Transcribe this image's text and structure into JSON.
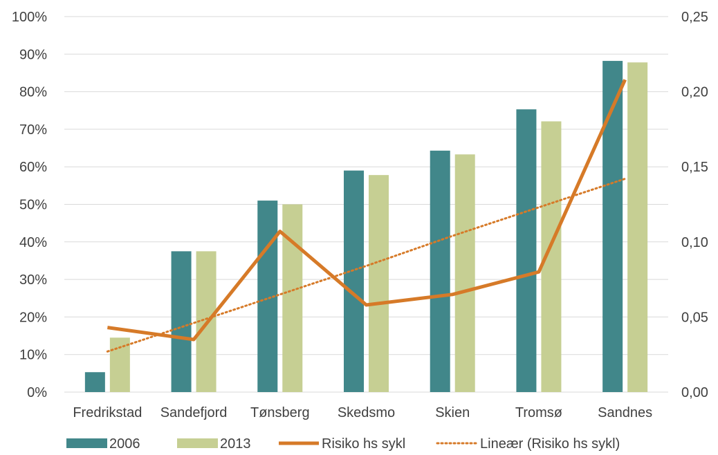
{
  "chart_data": {
    "type": "bar",
    "title": "",
    "xlabel": "",
    "ylabel": "",
    "categories": [
      "Fredrikstad",
      "Sandefjord",
      "Tønsberg",
      "Skedsmo",
      "Skien",
      "Tromsø",
      "Sandnes"
    ],
    "series": [
      {
        "name": "2006",
        "type": "bar",
        "axis": "left",
        "color": "#41878a",
        "values": [
          5.3,
          37.5,
          51,
          59,
          64.3,
          75.3,
          88.2
        ]
      },
      {
        "name": "2013",
        "type": "bar",
        "axis": "left",
        "color": "#c6cf93",
        "values": [
          14.5,
          37.5,
          50,
          57.8,
          63.3,
          72.1,
          87.8
        ]
      },
      {
        "name": "Risiko hs sykl",
        "type": "line",
        "axis": "right",
        "color": "#d67a28",
        "values": [
          0.043,
          0.035,
          0.107,
          0.058,
          0.065,
          0.08,
          0.208
        ]
      },
      {
        "name": "Lineær (Risiko hs sykl)",
        "type": "trendline",
        "axis": "right",
        "color": "#d67a28",
        "values": [
          0.027,
          0.046,
          0.065,
          0.084,
          0.104,
          0.123,
          0.142
        ]
      }
    ],
    "y_left": {
      "ylim": [
        0,
        100
      ],
      "ticks": [
        "0%",
        "10%",
        "20%",
        "30%",
        "40%",
        "50%",
        "60%",
        "70%",
        "80%",
        "90%",
        "100%"
      ]
    },
    "y_right": {
      "ylim": [
        0,
        0.25
      ],
      "ticks": [
        "0,00",
        "0,05",
        "0,10",
        "0,15",
        "0,20",
        "0,25"
      ]
    },
    "grid": true,
    "legend_position": "bottom"
  }
}
